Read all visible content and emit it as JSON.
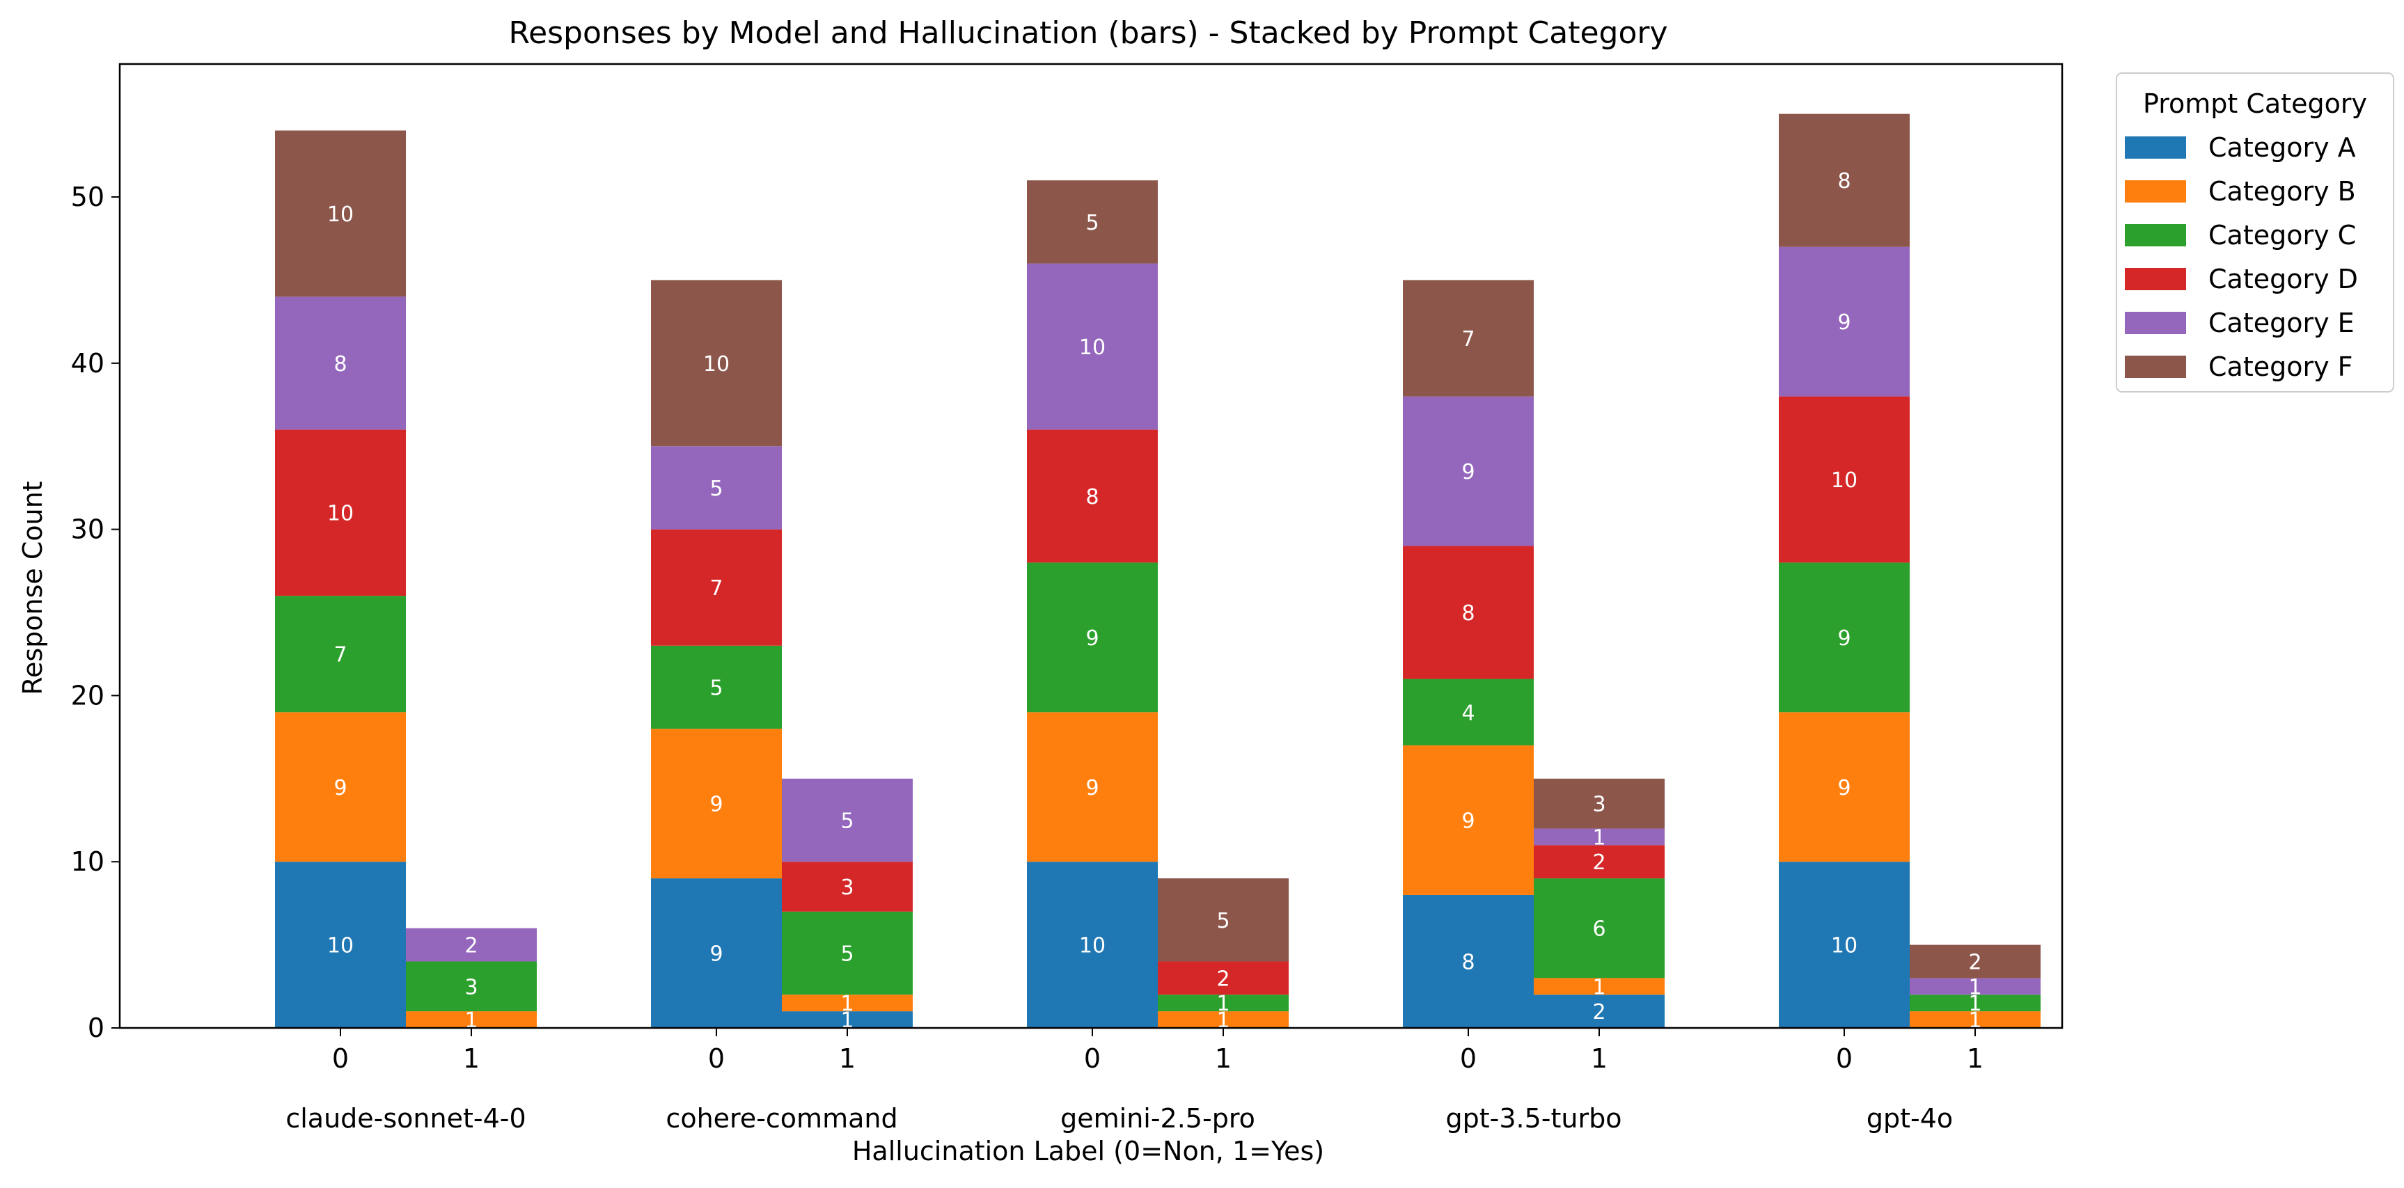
{
  "chart_data": {
    "type": "bar",
    "stacked": true,
    "title": "Responses by Model and Hallucination (bars) - Stacked by Prompt Category",
    "xlabel": "Hallucination Label (0=Non, 1=Yes)",
    "ylabel": "Response Count",
    "ylim": [
      0,
      58
    ],
    "yticks": [
      0,
      10,
      20,
      30,
      40,
      50
    ],
    "groups": [
      "claude-sonnet-4-0",
      "cohere-command",
      "gemini-2.5-pro",
      "gpt-3.5-turbo",
      "gpt-4o"
    ],
    "bar_labels": [
      "0",
      "1"
    ],
    "legend_title": "Prompt Category",
    "legend_position": "outside-top-right",
    "grid": false,
    "series": [
      {
        "name": "Category A",
        "color": "#1f77b4",
        "values": [
          [
            10,
            0
          ],
          [
            9,
            1
          ],
          [
            10,
            0
          ],
          [
            8,
            2
          ],
          [
            10,
            0
          ]
        ]
      },
      {
        "name": "Category B",
        "color": "#ff7f0e",
        "values": [
          [
            9,
            1
          ],
          [
            9,
            1
          ],
          [
            9,
            1
          ],
          [
            9,
            1
          ],
          [
            9,
            1
          ]
        ]
      },
      {
        "name": "Category C",
        "color": "#2ca02c",
        "values": [
          [
            7,
            3
          ],
          [
            5,
            5
          ],
          [
            9,
            1
          ],
          [
            4,
            6
          ],
          [
            9,
            1
          ]
        ]
      },
      {
        "name": "Category D",
        "color": "#d62728",
        "values": [
          [
            10,
            0
          ],
          [
            7,
            3
          ],
          [
            8,
            2
          ],
          [
            8,
            2
          ],
          [
            10,
            0
          ]
        ]
      },
      {
        "name": "Category E",
        "color": "#9467bd",
        "values": [
          [
            8,
            2
          ],
          [
            5,
            5
          ],
          [
            10,
            0
          ],
          [
            9,
            1
          ],
          [
            9,
            1
          ]
        ]
      },
      {
        "name": "Category F",
        "color": "#8c564b",
        "values": [
          [
            10,
            0
          ],
          [
            10,
            0
          ],
          [
            5,
            5
          ],
          [
            7,
            3
          ],
          [
            8,
            2
          ]
        ]
      }
    ]
  }
}
